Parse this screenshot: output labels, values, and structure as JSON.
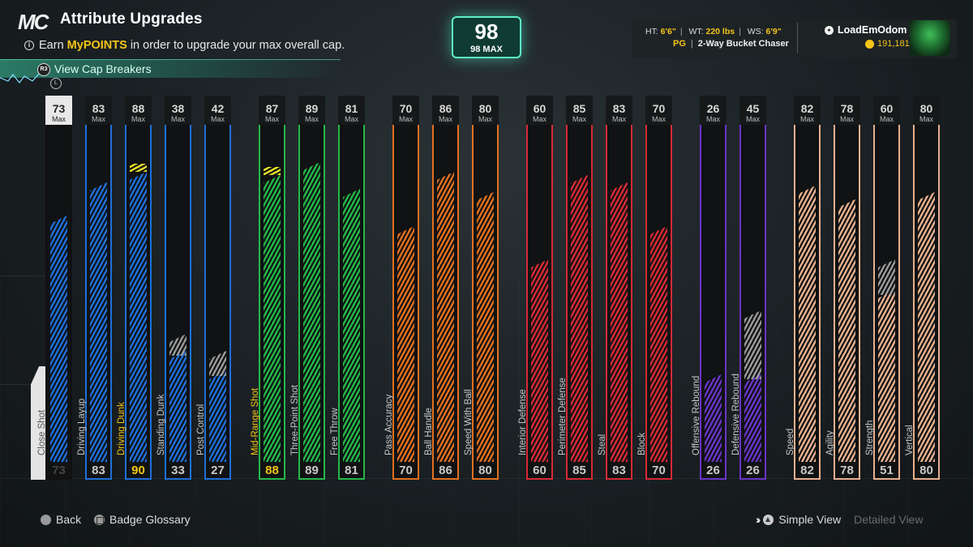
{
  "header": {
    "logo": "MC",
    "title": "Attribute Upgrades",
    "info_prefix": "Earn ",
    "info_highlight": "MyPOINTS",
    "info_suffix": " in order to upgrade your max overall cap.",
    "cap_button_glyph": "R3",
    "cap_button_label": "View Cap Breakers",
    "lb_glyph": "L"
  },
  "overall": {
    "value": "98",
    "label": "98 MAX"
  },
  "player": {
    "ht_label": "HT:",
    "ht": "6'6\"",
    "wt_label": "WT:",
    "wt": "220 lbs",
    "ws_label": "WS:",
    "ws": "6'9\"",
    "position": "PG",
    "build": "2-Way Bucket Chaser",
    "gamertag": "LoadEmOdom",
    "vc": "191,181"
  },
  "max_word": "Max",
  "colors": {
    "blue": "#1f6fd9",
    "green": "#25b84a",
    "orange": "#e2701f",
    "red": "#d62a35",
    "purple": "#6a34c8",
    "tan": "#e6b08e",
    "gold": "#f5c518",
    "accent": "#5ff0c8"
  },
  "attributes": [
    {
      "name": "Close Shot",
      "current": 73,
      "cap": 73,
      "color": "blue",
      "selected": true
    },
    {
      "name": "Driving Layup",
      "current": 83,
      "cap": 83,
      "color": "blue"
    },
    {
      "name": "Driving Dunk",
      "current": 90,
      "cap": 88,
      "color": "blue",
      "boosted": true
    },
    {
      "name": "Standing Dunk",
      "current": 33,
      "cap": 38,
      "color": "blue",
      "ghost": 38
    },
    {
      "name": "Post Control",
      "current": 27,
      "cap": 42,
      "color": "blue",
      "ghost": 33
    },
    {
      "name": "Mid-Range Shot",
      "current": 88,
      "cap": 87,
      "color": "green",
      "boosted": true
    },
    {
      "name": "Three-Point Shot",
      "current": 89,
      "cap": 89,
      "color": "green"
    },
    {
      "name": "Free Throw",
      "current": 81,
      "cap": 81,
      "color": "green"
    },
    {
      "name": "Pass Accuracy",
      "current": 70,
      "cap": 70,
      "color": "orange"
    },
    {
      "name": "Ball Handle",
      "current": 86,
      "cap": 86,
      "color": "orange"
    },
    {
      "name": "Speed With Ball",
      "current": 80,
      "cap": 80,
      "color": "orange"
    },
    {
      "name": "Interior Defense",
      "current": 60,
      "cap": 60,
      "color": "red"
    },
    {
      "name": "Perimeter Defense",
      "current": 85,
      "cap": 85,
      "color": "red"
    },
    {
      "name": "Steal",
      "current": 83,
      "cap": 83,
      "color": "red"
    },
    {
      "name": "Block",
      "current": 70,
      "cap": 70,
      "color": "red"
    },
    {
      "name": "Offensive Rebound",
      "current": 26,
      "cap": 26,
      "color": "purple"
    },
    {
      "name": "Defensive Rebound",
      "current": 26,
      "cap": 45,
      "color": "purple",
      "ghost": 45
    },
    {
      "name": "Speed",
      "current": 82,
      "cap": 82,
      "color": "tan"
    },
    {
      "name": "Agility",
      "current": 78,
      "cap": 78,
      "color": "tan"
    },
    {
      "name": "Strength",
      "current": 51,
      "cap": 60,
      "color": "tan",
      "ghost": 60
    },
    {
      "name": "Vertical",
      "current": 80,
      "cap": 80,
      "color": "tan"
    }
  ],
  "footer": {
    "back": "Back",
    "glossary": "Badge Glossary",
    "simple": "Simple View",
    "detailed": "Detailed View"
  }
}
